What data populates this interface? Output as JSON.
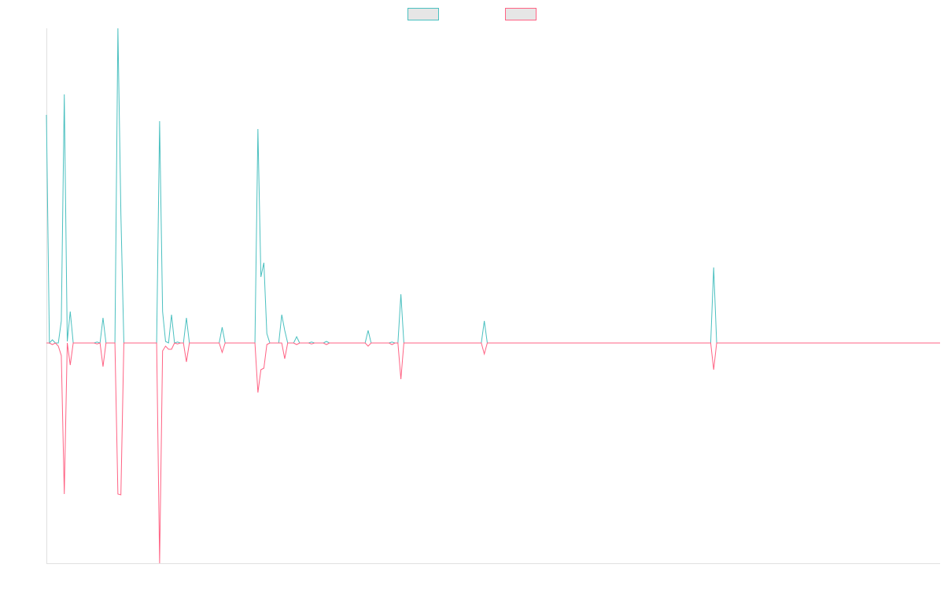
{
  "chart_data": {
    "type": "line",
    "x": [
      0,
      1,
      2,
      3,
      4,
      5,
      6,
      7,
      8,
      9,
      16,
      17,
      18,
      19,
      20,
      23,
      24,
      25,
      26,
      37,
      38,
      39,
      40,
      41,
      42,
      43,
      44,
      45,
      46,
      47,
      48,
      58,
      59,
      60,
      70,
      71,
      72,
      73,
      74,
      75,
      78,
      79,
      80,
      81,
      83,
      84,
      85,
      88,
      89,
      90,
      93,
      94,
      95,
      107,
      108,
      109,
      115,
      116,
      117,
      118,
      119,
      120,
      146,
      147,
      148,
      223,
      224,
      225,
      300
    ],
    "xlim": [
      0,
      300
    ],
    "ylim": [
      -70,
      100
    ],
    "series": [
      {
        "color": "#4bc0c0",
        "values": [
          72.5,
          0,
          1,
          0,
          0,
          7,
          79,
          0.5,
          10,
          0,
          0,
          0.3,
          0,
          8,
          0,
          0,
          100,
          41,
          0,
          0,
          70.5,
          10,
          0.5,
          0,
          9,
          0,
          0.3,
          0,
          0,
          8,
          0,
          0,
          5,
          0,
          0,
          68,
          21,
          25.5,
          3,
          0,
          0,
          9,
          4,
          0,
          0,
          2,
          0,
          0,
          0.3,
          0,
          0,
          0.5,
          0,
          0,
          4,
          0,
          0,
          0.3,
          0,
          0,
          15.5,
          0,
          0,
          7,
          0,
          0,
          24,
          0,
          0
        ]
      },
      {
        "color": "#ff6384",
        "values": [
          0,
          0,
          -0.5,
          0,
          -1,
          -4,
          -48,
          0,
          -7,
          0,
          0,
          -0.3,
          0,
          -7.5,
          0,
          0,
          -48,
          -48.25,
          0,
          0,
          -70,
          -2.5,
          -1,
          -2,
          -2,
          0,
          -0.3,
          0,
          0,
          -6,
          0,
          0,
          -3,
          0,
          0,
          -15.75,
          -8.5,
          -8,
          -0.5,
          0,
          0,
          0,
          -5,
          0,
          0,
          -0.5,
          0,
          0,
          -0.3,
          0,
          0,
          -0.5,
          0,
          0,
          -1,
          0,
          0,
          -0.5,
          0,
          0,
          -11.5,
          0,
          0,
          -3.5,
          0,
          0,
          -8.5,
          0,
          0
        ]
      }
    ]
  }
}
